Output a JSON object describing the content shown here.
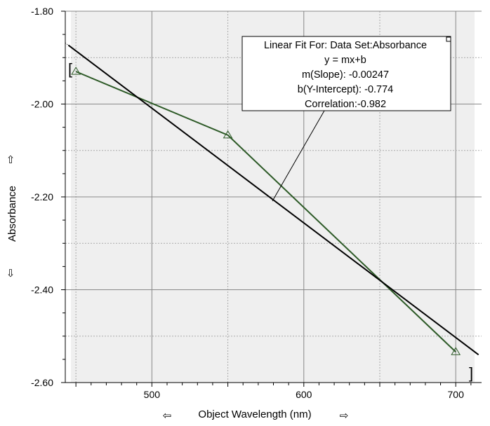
{
  "chart_data": {
    "type": "line",
    "xlabel": "Object Wavelength (nm)",
    "ylabel": "Absorbance",
    "xlim": [
      443,
      717
    ],
    "ylim": [
      -2.6,
      -1.8
    ],
    "x_ticks": [
      500,
      600,
      700
    ],
    "x_tick_labels": [
      "500",
      "600",
      "700"
    ],
    "x_minor_step": 10,
    "y_ticks": [
      -2.6,
      -2.4,
      -2.2,
      -2.0,
      -1.8
    ],
    "y_tick_labels": [
      "-2.60",
      "-2.40",
      "-2.20",
      "-2.00",
      "-1.80"
    ],
    "y_minor_step": 0.1,
    "grid": true,
    "series": [
      {
        "name": "Absorbance",
        "x": [
          450,
          550,
          700
        ],
        "y": [
          -1.93,
          -2.067,
          -2.534
        ],
        "color": "#2d5a27",
        "marker": "triangle"
      }
    ],
    "fit": {
      "color": "#000000",
      "slope": -0.00247,
      "intercept": -0.774,
      "x_range": [
        445,
        715
      ],
      "title_line": "Linear Fit For:  Data Set:Absorbance",
      "equation": "y = mx+b",
      "slope_text": "m(Slope): -0.00247",
      "intercept_text": "b(Y-Intercept): -0.774",
      "correlation_text": "Correlation:-0.982",
      "bracket_left": "[",
      "bracket_right": "]"
    },
    "axis_arrows": {
      "y_up": "⇧",
      "y_down": "⇩",
      "x_left": "⇦",
      "x_right": "⇨"
    }
  }
}
